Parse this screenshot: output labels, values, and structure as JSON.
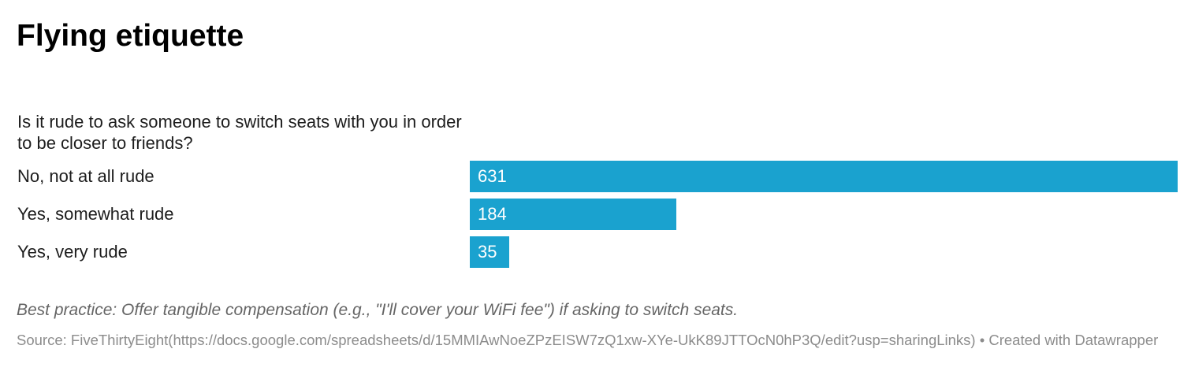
{
  "header": {
    "title": "Flying etiquette"
  },
  "chart_data": {
    "type": "bar",
    "orientation": "horizontal",
    "title": "Flying etiquette",
    "question": "Is it rude to ask someone to switch seats with you in order to be closer to friends?",
    "categories": [
      "No, not at all rude",
      "Yes, somewhat rude",
      "Yes, very rude"
    ],
    "values": [
      631,
      184,
      35
    ],
    "value_labels": [
      "631",
      "184",
      "35"
    ],
    "xlim": [
      0,
      631
    ],
    "grid": false,
    "legend": "none",
    "bar_color": "#1aa2cf",
    "value_label_color": "#ffffff"
  },
  "footer": {
    "note": "Best practice: Offer tangible compensation (e.g., \"I'll cover your WiFi fee\") if asking to switch seats.",
    "source_prefix": "Source: ",
    "source_name": "FiveThirtyEight",
    "source_url": "(https://docs.google.com/spreadsheets/d/15MMIAwNoeZPzEISW7zQ1xw-XYe-UkK89JTTOcN0hP3Q/edit?usp=sharingLinks)",
    "separator": " • ",
    "credit": "Created with Datawrapper"
  }
}
